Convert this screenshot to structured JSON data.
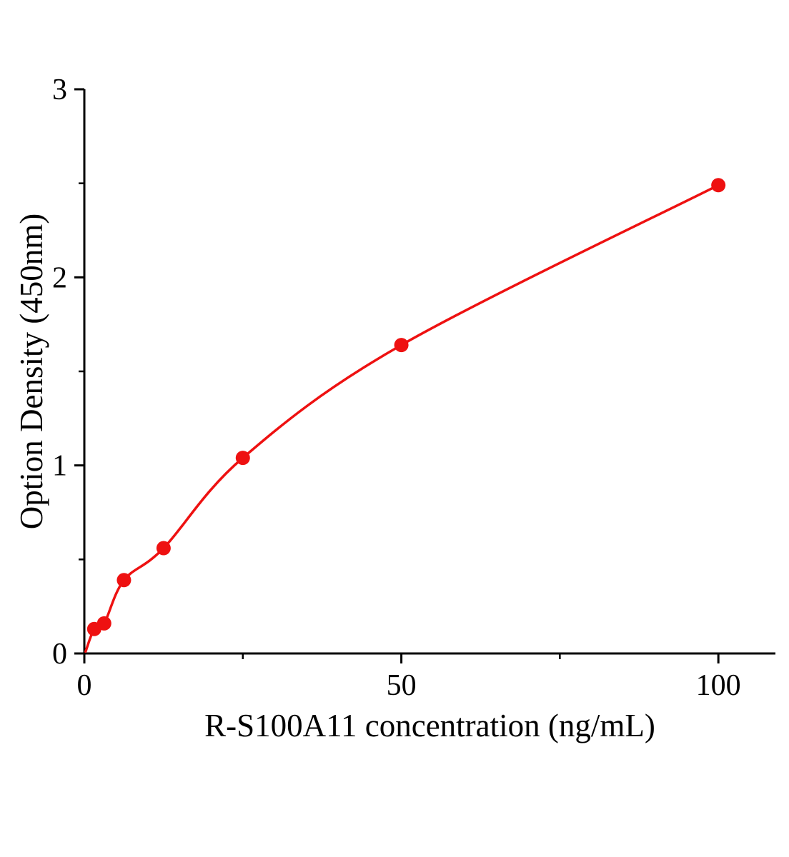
{
  "figure": {
    "background_color": "#ffffff"
  },
  "chart_data": {
    "type": "scatter",
    "has_fit_curve": true,
    "title": "",
    "xlabel": "R-S100A11 concentration (ng/mL)",
    "ylabel": "Option Density (450nm)",
    "x": [
      1.56,
      3.13,
      6.25,
      12.5,
      25,
      50,
      100
    ],
    "y": [
      0.13,
      0.16,
      0.39,
      0.56,
      1.04,
      1.64,
      2.49
    ],
    "curve_start": [
      0.2,
      0.01
    ],
    "xlim": [
      0,
      109
    ],
    "ylim": [
      0,
      3
    ],
    "xticks": [
      "0",
      "50",
      "100"
    ],
    "yticks": [
      "0",
      "1",
      "2",
      "3"
    ],
    "x_minor_ticks": [
      25,
      75
    ],
    "y_minor_ticks": [
      0.5,
      1.5,
      2.5
    ],
    "grid": false,
    "legend": "none",
    "marker": "filled-circle",
    "point_color": "#ee1111",
    "line_color": "#ee1111",
    "axis_color": "#000000",
    "tick_label_color": "#000000"
  }
}
